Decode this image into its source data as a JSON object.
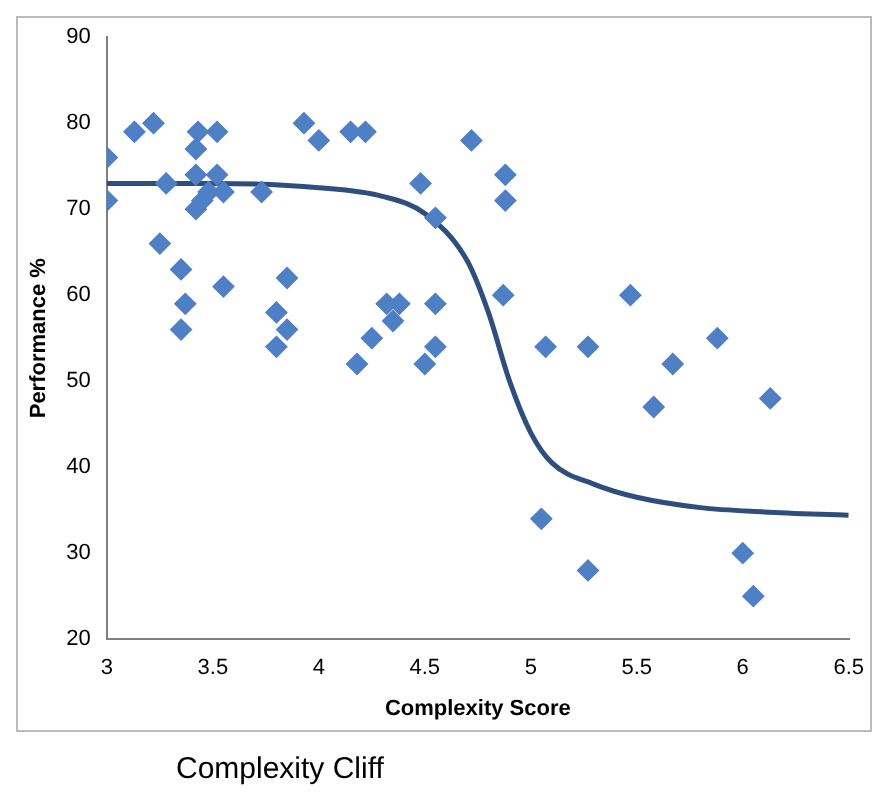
{
  "chart_data": {
    "type": "scatter",
    "title": "Complexity Cliff",
    "xlabel": "Complexity Score",
    "ylabel": "Performance %",
    "xlim": [
      3,
      6.5
    ],
    "xticks": [
      3,
      3.5,
      4,
      4.5,
      5,
      5.5,
      6,
      6.5
    ],
    "ylim": [
      20,
      90
    ],
    "yticks": [
      20,
      30,
      40,
      50,
      60,
      70,
      80,
      90
    ],
    "grid": false,
    "legend": false,
    "marker": "diamond",
    "series": [
      {
        "color": "#4f7fc4",
        "x": [
          3.0,
          3.0,
          3.13,
          3.22,
          3.28,
          3.25,
          3.35,
          3.37,
          3.35,
          3.42,
          3.43,
          3.42,
          3.42,
          3.45,
          3.48,
          3.52,
          3.52,
          3.55,
          3.55,
          3.73,
          3.8,
          3.8,
          3.85,
          3.85,
          3.93,
          4.0,
          4.15,
          4.22,
          4.18,
          4.25,
          4.32,
          4.35,
          4.38,
          4.48,
          4.5,
          4.55,
          4.55,
          4.55,
          4.72,
          4.88,
          4.88,
          4.87,
          5.05,
          5.07,
          5.27,
          5.27,
          5.47,
          5.58,
          5.67,
          5.88,
          6.0,
          6.05,
          6.13
        ],
        "values": [
          76,
          71,
          79,
          80,
          73,
          66,
          63,
          59,
          56,
          77,
          79,
          74,
          70,
          71,
          72,
          79,
          74,
          72,
          61,
          72,
          58,
          54,
          56,
          62,
          80,
          78,
          79,
          79,
          52,
          55,
          59,
          57,
          59,
          73,
          52,
          54,
          59,
          69,
          78,
          74,
          71,
          60,
          34,
          54,
          54,
          28,
          60,
          47,
          52,
          55,
          30,
          25,
          48
        ]
      },
      {
        "type": "line",
        "marker": "none",
        "color": "#2e4e7e",
        "x": [
          3,
          3.5,
          4,
          4.3,
          4.5,
          4.7,
          4.8,
          4.9,
          5.0,
          5.1,
          5.3,
          5.5,
          5.8,
          6.1,
          6.5
        ],
        "values": [
          73,
          73,
          72.5,
          71.5,
          69.5,
          64,
          58,
          50,
          44,
          40.5,
          38,
          36.5,
          35.3,
          34.8,
          34.4
        ]
      }
    ]
  }
}
